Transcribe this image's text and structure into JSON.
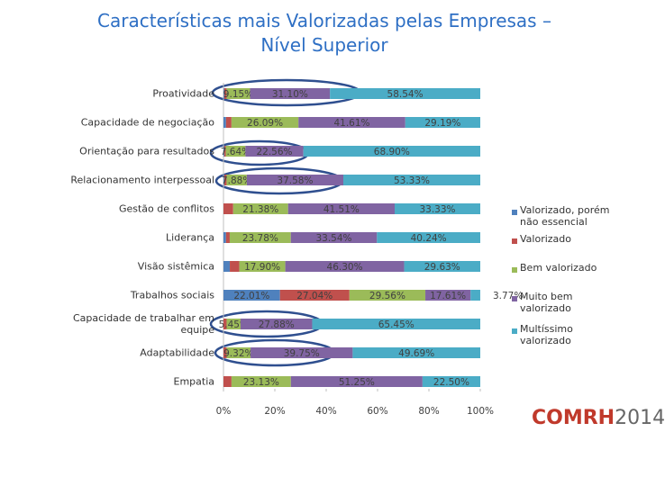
{
  "chart_data": {
    "type": "stacked-bar-horizontal",
    "title": "Características mais Valorizadas pelas Empresas – Nível Superior",
    "categories": [
      "Proatividade",
      "Capacidade de negociação",
      "Orientação para resultados",
      "Relacionamento interpessoal",
      "Gestão de conflitos",
      "Liderança",
      "Visão sistêmica",
      "Trabalhos sociais",
      "Capacidade de trabalhar em equipe",
      "Adaptabilidade",
      "Empatia"
    ],
    "series": [
      {
        "name": "Valorizado, porém não essencial",
        "color": "#4f81bd",
        "values": [
          0.3,
          1.0,
          0.3,
          0.3,
          0,
          1.0,
          2.47,
          22.01,
          0,
          0,
          0
        ],
        "value_labels": [
          null,
          null,
          null,
          null,
          null,
          null,
          null,
          "22.01%",
          null,
          null,
          null
        ]
      },
      {
        "name": "Valorizado",
        "color": "#c0504d",
        "values": [
          0.91,
          2.11,
          0.6,
          0.91,
          3.78,
          1.44,
          3.7,
          27.04,
          1.22,
          1.24,
          3.12
        ],
        "value_labels": [
          null,
          null,
          null,
          null,
          null,
          null,
          null,
          "27.04%",
          null,
          null,
          null
        ]
      },
      {
        "name": "Bem valorizado",
        "color": "#9bbb59",
        "values": [
          9.15,
          26.09,
          7.64,
          7.88,
          21.38,
          23.78,
          17.9,
          29.56,
          5.45,
          9.32,
          23.13
        ],
        "value_labels": [
          "9.15%",
          "26.09%",
          "7.64%",
          "7.88%",
          "21.38%",
          "23.78%",
          "17.90%",
          "29.56%",
          "5.45%",
          "9.32%",
          "23.13%"
        ]
      },
      {
        "name": "Muito bem valorizado",
        "color": "#8064a2",
        "values": [
          31.1,
          41.61,
          22.56,
          37.58,
          41.51,
          33.54,
          46.3,
          17.61,
          27.88,
          39.75,
          51.25
        ],
        "value_labels": [
          "31.10%",
          "41.61%",
          "22.56%",
          "37.58%",
          "41.51%",
          "33.54%",
          "46.30%",
          "17.61%",
          "27.88%",
          "39.75%",
          "51.25%"
        ]
      },
      {
        "name": "Multíssimo valorizado",
        "color": "#4bacc6",
        "values": [
          58.54,
          29.19,
          68.9,
          53.33,
          33.33,
          40.24,
          29.63,
          3.77,
          65.45,
          49.69,
          22.5
        ],
        "value_labels": [
          "58.54%",
          "29.19%",
          "68.90%",
          "53.33%",
          "33.33%",
          "40.24%",
          "29.63%",
          "3.77%",
          "65.45%",
          "49.69%",
          "22.50%"
        ]
      }
    ],
    "xlim": [
      0,
      100
    ],
    "xticks": [
      {
        "value": 0,
        "label": "0%"
      },
      {
        "value": 20,
        "label": "20%"
      },
      {
        "value": 40,
        "label": "40%"
      },
      {
        "value": 60,
        "label": "60%"
      },
      {
        "value": 80,
        "label": "80%"
      },
      {
        "value": 100,
        "label": "100%"
      }
    ],
    "legend": "right"
  },
  "logo": {
    "name": "COMRH",
    "year": "2014"
  }
}
